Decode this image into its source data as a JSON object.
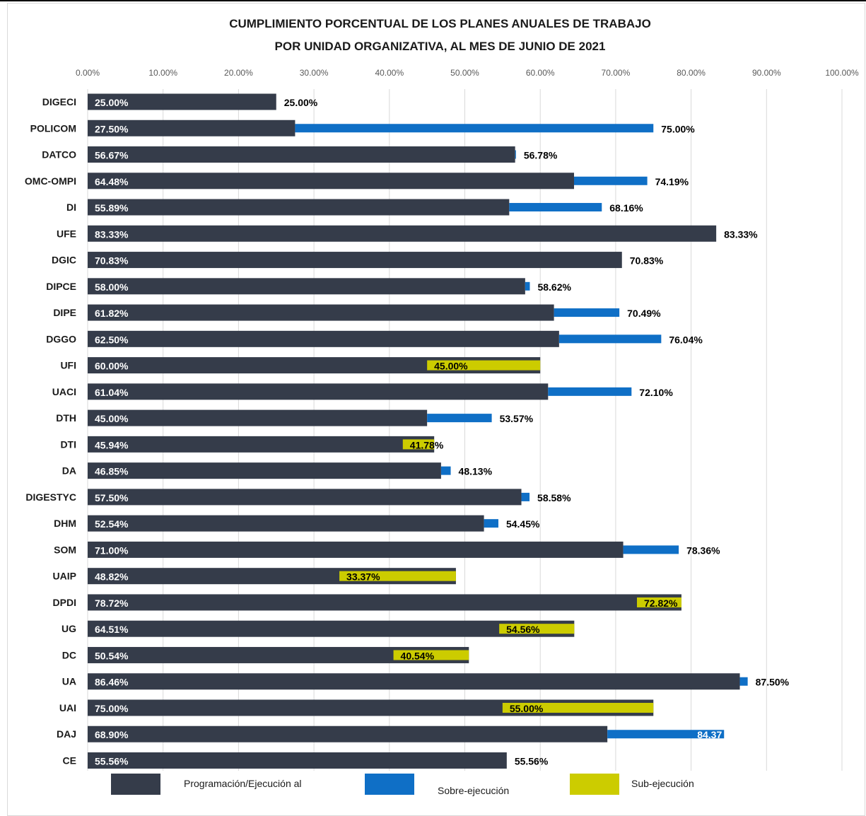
{
  "chart_data": {
    "type": "bar",
    "orientation": "horizontal",
    "title_lines": [
      "CUMPLIMIENTO PORCENTUAL DE LOS PLANES ANUALES DE TRABAJO",
      "POR UNIDAD ORGANIZATIVA, AL MES DE JUNIO DE 2021"
    ],
    "xlim": [
      0,
      100
    ],
    "x_ticks": [
      "0.00%",
      "10.00%",
      "20.00%",
      "30.00%",
      "40.00%",
      "50.00%",
      "60.00%",
      "70.00%",
      "80.00%",
      "90.00%",
      "100.00%"
    ],
    "grid": true,
    "legend_position": "bottom",
    "categories": [
      "DIGECI",
      "POLICOM",
      "DATCO",
      "OMC-OMPI",
      "DI",
      "UFE",
      "DGIC",
      "DIPCE",
      "DIPE",
      "DGGO",
      "UFI",
      "UACI",
      "DTH",
      "DTI",
      "DA",
      "DIGESTYC",
      "DHM",
      "SOM",
      "UAIP",
      "DPDI",
      "UG",
      "DC",
      "UA",
      "UAI",
      "DAJ",
      "CE"
    ],
    "series": [
      {
        "name": "Programación/Ejecución al",
        "color": "#353c4a",
        "values": [
          25.0,
          27.5,
          56.67,
          64.48,
          55.89,
          83.33,
          70.83,
          58.0,
          61.82,
          62.5,
          60.0,
          61.04,
          45.0,
          45.94,
          46.85,
          57.5,
          52.54,
          71.0,
          48.82,
          78.72,
          64.51,
          50.54,
          86.46,
          75.0,
          68.9,
          55.56
        ],
        "labels": [
          "25.00%",
          "27.50%",
          "56.67%",
          "64.48%",
          "55.89%",
          "83.33%",
          "70.83%",
          "58.00%",
          "61.82%",
          "62.50%",
          "60.00%",
          "61.04%",
          "45.00%",
          "45.94%",
          "46.85%",
          "57.50%",
          "52.54%",
          "71.00%",
          "48.82%",
          "78.72%",
          "64.51%",
          "50.54%",
          "86.46%",
          "75.00%",
          "68.90%",
          "55.56%"
        ]
      },
      {
        "name": "Sobre-ejecución",
        "color": "#0f6fc6",
        "values": [
          null,
          75.0,
          56.78,
          74.19,
          68.16,
          null,
          null,
          58.62,
          70.49,
          76.04,
          null,
          72.1,
          53.57,
          null,
          48.13,
          58.58,
          54.45,
          78.36,
          null,
          null,
          null,
          null,
          87.5,
          null,
          84.37,
          null
        ]
      },
      {
        "name": "Sub-ejecución",
        "color": "#cccc00",
        "values": [
          null,
          null,
          null,
          null,
          null,
          null,
          null,
          null,
          null,
          null,
          45.0,
          null,
          null,
          41.78,
          null,
          null,
          null,
          null,
          33.37,
          72.82,
          54.56,
          40.54,
          null,
          55.0,
          null,
          null
        ]
      }
    ],
    "end_labels": [
      "25.00%",
      "75.00%",
      "56.78%",
      "74.19%",
      "68.16%",
      "83.33%",
      "70.83%",
      "58.62%",
      "70.49%",
      "76.04%",
      "45.00%",
      "72.10%",
      "53.57%",
      "41.78%",
      "48.13%",
      "58.58%",
      "54.45%",
      "78.36%",
      "33.37%",
      "72.82%",
      "54.56%",
      "40.54%",
      "87.50%",
      "55.00%",
      "84.37",
      "55.56%"
    ]
  },
  "legend": [
    {
      "label": "Programación/Ejecución al",
      "color": "#353c4a"
    },
    {
      "label": "Sobre-ejecución",
      "color": "#0f6fc6"
    },
    {
      "label": "Sub-ejecución",
      "color": "#cccc00"
    }
  ]
}
